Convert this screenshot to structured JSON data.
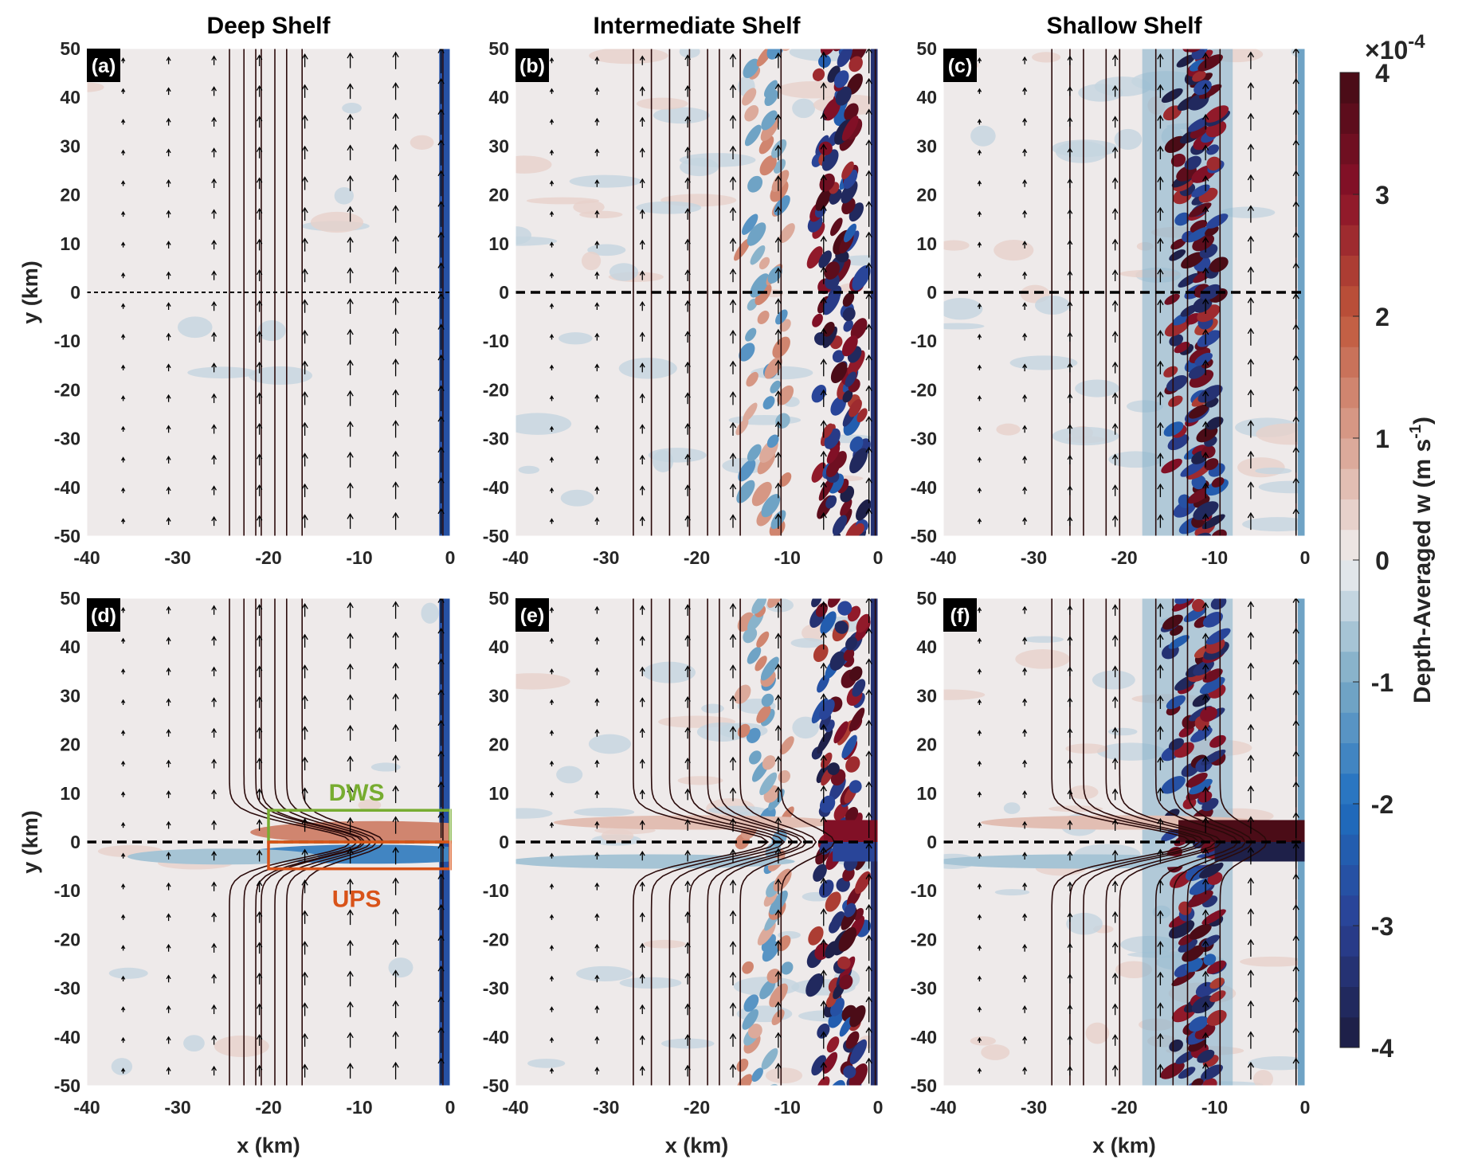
{
  "chart_data": {
    "type": "heatmap",
    "xlabel": "x (km)",
    "ylabel": "y (km)",
    "xlim": [
      -40,
      0
    ],
    "ylim": [
      -50,
      50
    ],
    "xticks": [
      "-40",
      "-30",
      "-20",
      "-10",
      "0"
    ],
    "yticks": [
      "50",
      "40",
      "30",
      "20",
      "10",
      "0",
      "-10",
      "-20",
      "-30",
      "-40",
      "-50"
    ],
    "column_titles": [
      "Deep Shelf",
      "Intermediate Shelf",
      "Shallow Shelf"
    ],
    "panels": [
      {
        "label": "(a)",
        "title": "Deep Shelf"
      },
      {
        "label": "(b)",
        "title": "Intermediate Shelf"
      },
      {
        "label": "(c)",
        "title": "Shallow Shelf"
      },
      {
        "label": "(d)",
        "annotations": [
          {
            "text": "DWS",
            "color": "#77ac30"
          },
          {
            "text": "UPS",
            "color": "#d95319"
          }
        ]
      },
      {
        "label": "(e)"
      },
      {
        "label": "(f)"
      }
    ],
    "colorbar": {
      "label": "Depth-Averaged w (m s",
      "label_sup": "-1",
      "label_end": ")",
      "multiplier": "×10",
      "multiplier_exp": "-4",
      "range": [
        -4,
        4
      ],
      "ticks": [
        "4",
        "3",
        "2",
        "1",
        "0",
        "-1",
        "-2",
        "-3",
        "-4"
      ],
      "levels": 32,
      "colormap_anchors": [
        "#1c1b3e",
        "#2a3f93",
        "#1e6fc0",
        "#7aaac6",
        "#f0efef",
        "#d9a08f",
        "#c0573a",
        "#8a1128",
        "#420b14"
      ]
    },
    "grid": false
  }
}
